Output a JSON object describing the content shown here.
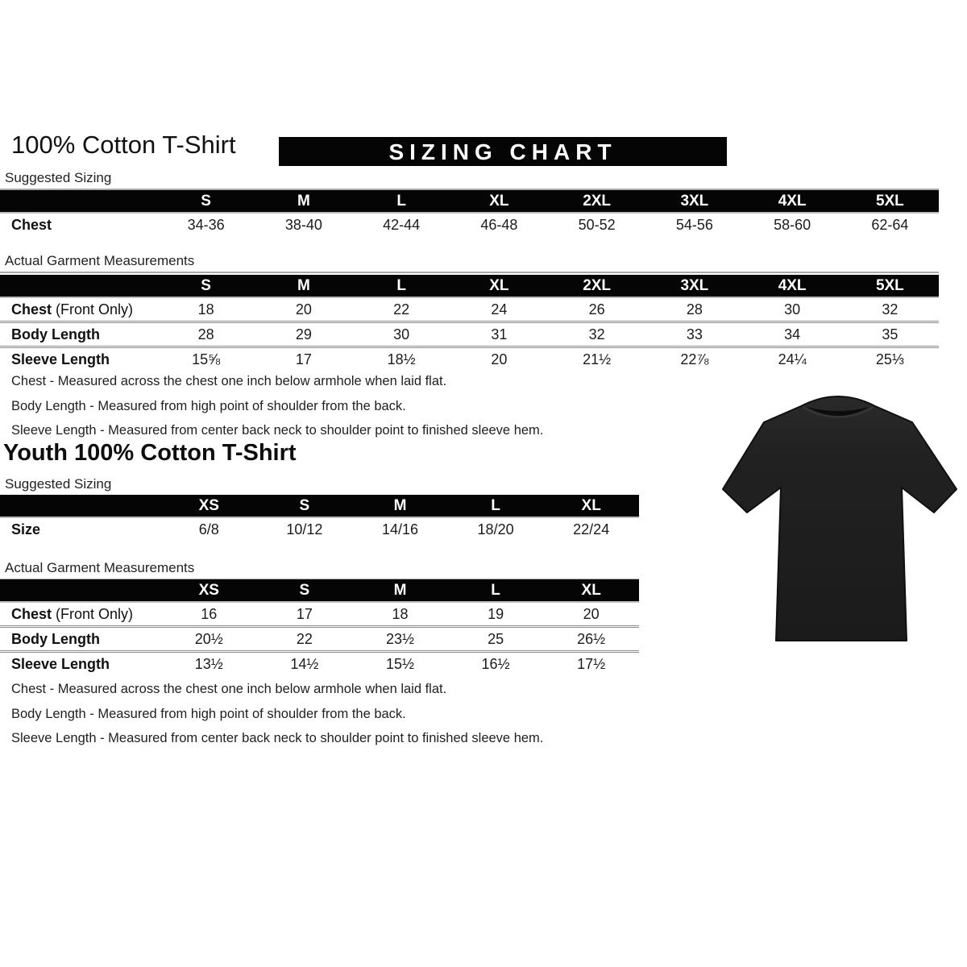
{
  "header": {
    "title": "100% Cotton T-Shirt",
    "banner": "SIZING CHART"
  },
  "adult": {
    "suggested": {
      "heading": "Suggested Sizing",
      "columns": [
        "S",
        "M",
        "L",
        "XL",
        "2XL",
        "3XL",
        "4XL",
        "5XL"
      ],
      "rows": [
        {
          "label": "Chest",
          "suffix": "",
          "values": [
            "34-36",
            "38-40",
            "42-44",
            "46-48",
            "50-52",
            "54-56",
            "58-60",
            "62-64"
          ]
        }
      ]
    },
    "actual": {
      "heading": "Actual Garment Measurements",
      "columns": [
        "S",
        "M",
        "L",
        "XL",
        "2XL",
        "3XL",
        "4XL",
        "5XL"
      ],
      "rows": [
        {
          "label": "Chest",
          "suffix": " (Front Only)",
          "values": [
            "18",
            "20",
            "22",
            "24",
            "26",
            "28",
            "30",
            "32"
          ]
        },
        {
          "label": "Body Length",
          "suffix": "",
          "values": [
            "28",
            "29",
            "30",
            "31",
            "32",
            "33",
            "34",
            "35"
          ]
        },
        {
          "label": "Sleeve Length",
          "suffix": "",
          "values": [
            "15⅝",
            "17",
            "18½",
            "20",
            "21½",
            "22⅞",
            "24¼",
            "25⅓"
          ]
        }
      ]
    },
    "notes": [
      "Chest - Measured across the chest one inch below armhole when laid flat.",
      "Body Length - Measured from high point of shoulder from the back.",
      "Sleeve Length - Measured from center back neck to shoulder point to finished sleeve hem."
    ]
  },
  "youth": {
    "title": "Youth 100% Cotton T-Shirt",
    "suggested": {
      "heading": "Suggested Sizing",
      "columns": [
        "XS",
        "S",
        "M",
        "L",
        "XL"
      ],
      "rows": [
        {
          "label": "Size",
          "suffix": "",
          "values": [
            "6/8",
            "10/12",
            "14/16",
            "18/20",
            "22/24"
          ]
        }
      ]
    },
    "actual": {
      "heading": "Actual Garment Measurements",
      "columns": [
        "XS",
        "S",
        "M",
        "L",
        "XL"
      ],
      "rows": [
        {
          "label": "Chest",
          "suffix": " (Front Only)",
          "values": [
            "16",
            "17",
            "18",
            "19",
            "20"
          ]
        },
        {
          "label": "Body Length",
          "suffix": "",
          "values": [
            "20½",
            "22",
            "23½",
            "25",
            "26½"
          ]
        },
        {
          "label": "Sleeve Length",
          "suffix": "",
          "values": [
            "13½",
            "14½",
            "15½",
            "16½",
            "17½"
          ]
        }
      ]
    },
    "notes": [
      "Chest - Measured across the chest one inch below armhole when laid flat.",
      "Body Length - Measured from high point of shoulder from the back.",
      "Sleeve Length - Measured from center back neck to shoulder point to finished sleeve hem."
    ]
  },
  "image": {
    "description": "black short-sleeve t-shirt photo"
  },
  "colors": {
    "bar_background": "#050505",
    "bar_text": "#ffffff",
    "body_text": "#1a1a1a",
    "shirt": "#202020"
  }
}
